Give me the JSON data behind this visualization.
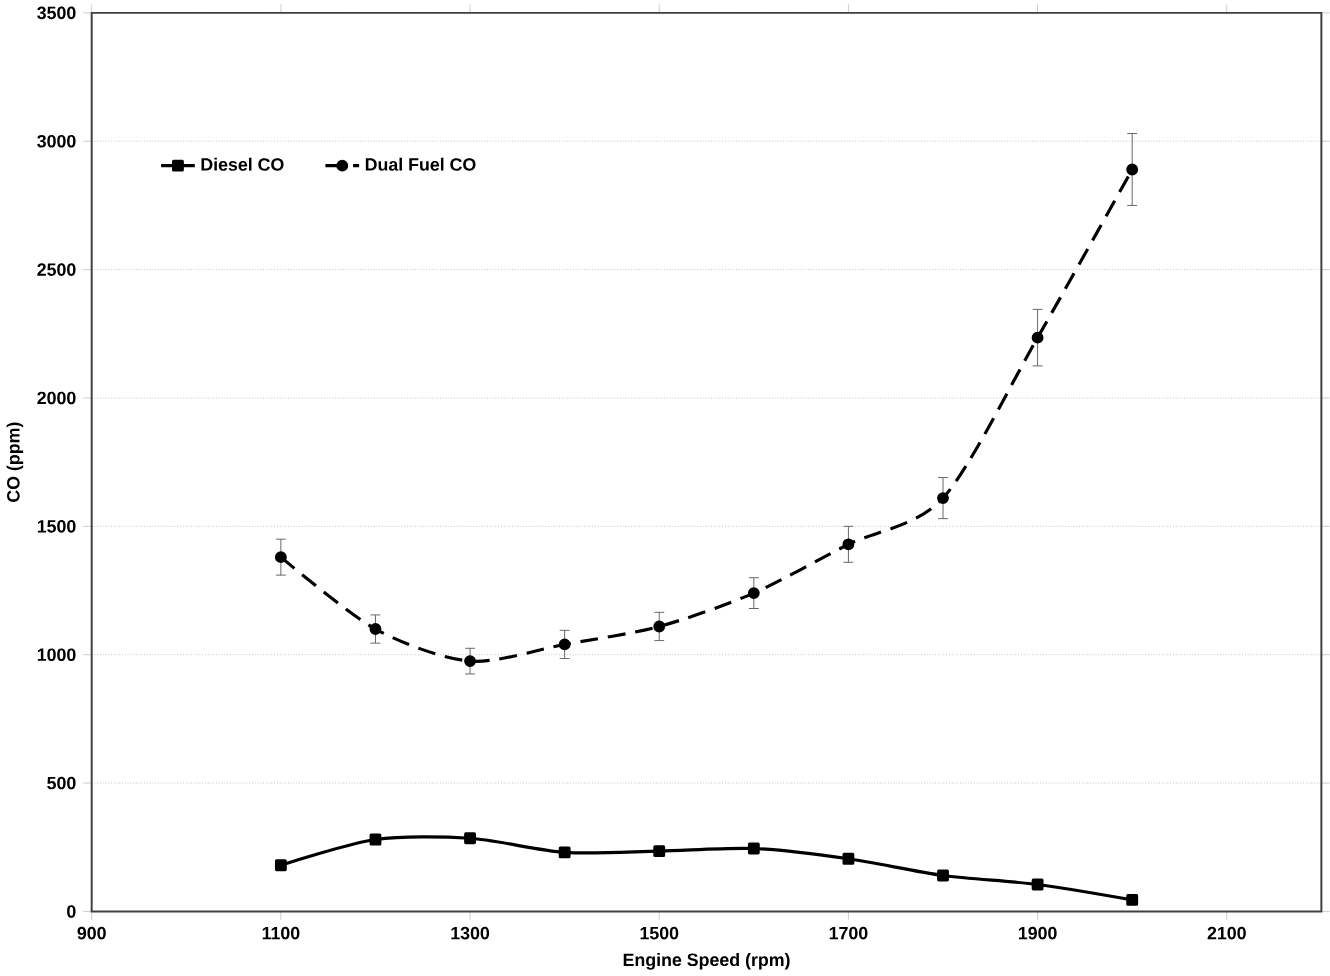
{
  "chart_data": {
    "type": "line",
    "xlabel": "Engine Speed (rpm)",
    "ylabel": "CO (ppm)",
    "x": [
      1100,
      1200,
      1300,
      1400,
      1500,
      1600,
      1700,
      1800,
      1900,
      2000
    ],
    "series": [
      {
        "name": "Diesel CO",
        "color": "#000000",
        "marker": "square",
        "line_style": "solid",
        "values": [
          180,
          280,
          285,
          230,
          235,
          245,
          205,
          140,
          105,
          45
        ]
      },
      {
        "name": "Dual Fuel CO",
        "color": "#000000",
        "marker": "circle",
        "line_style": "dashed",
        "values": [
          1380,
          1100,
          975,
          1040,
          1110,
          1240,
          1430,
          1610,
          2235,
          2890
        ],
        "errors": [
          70,
          55,
          50,
          55,
          55,
          60,
          70,
          80,
          110,
          140
        ]
      }
    ],
    "xlim": [
      900,
      2200
    ],
    "xticks": [
      900,
      1100,
      1300,
      1500,
      1700,
      1900,
      2100
    ],
    "ylim": [
      0,
      3500
    ],
    "yticks": [
      0,
      500,
      1000,
      1500,
      2000,
      2500,
      3000,
      3500
    ],
    "grid": "y",
    "legend": "top left"
  }
}
